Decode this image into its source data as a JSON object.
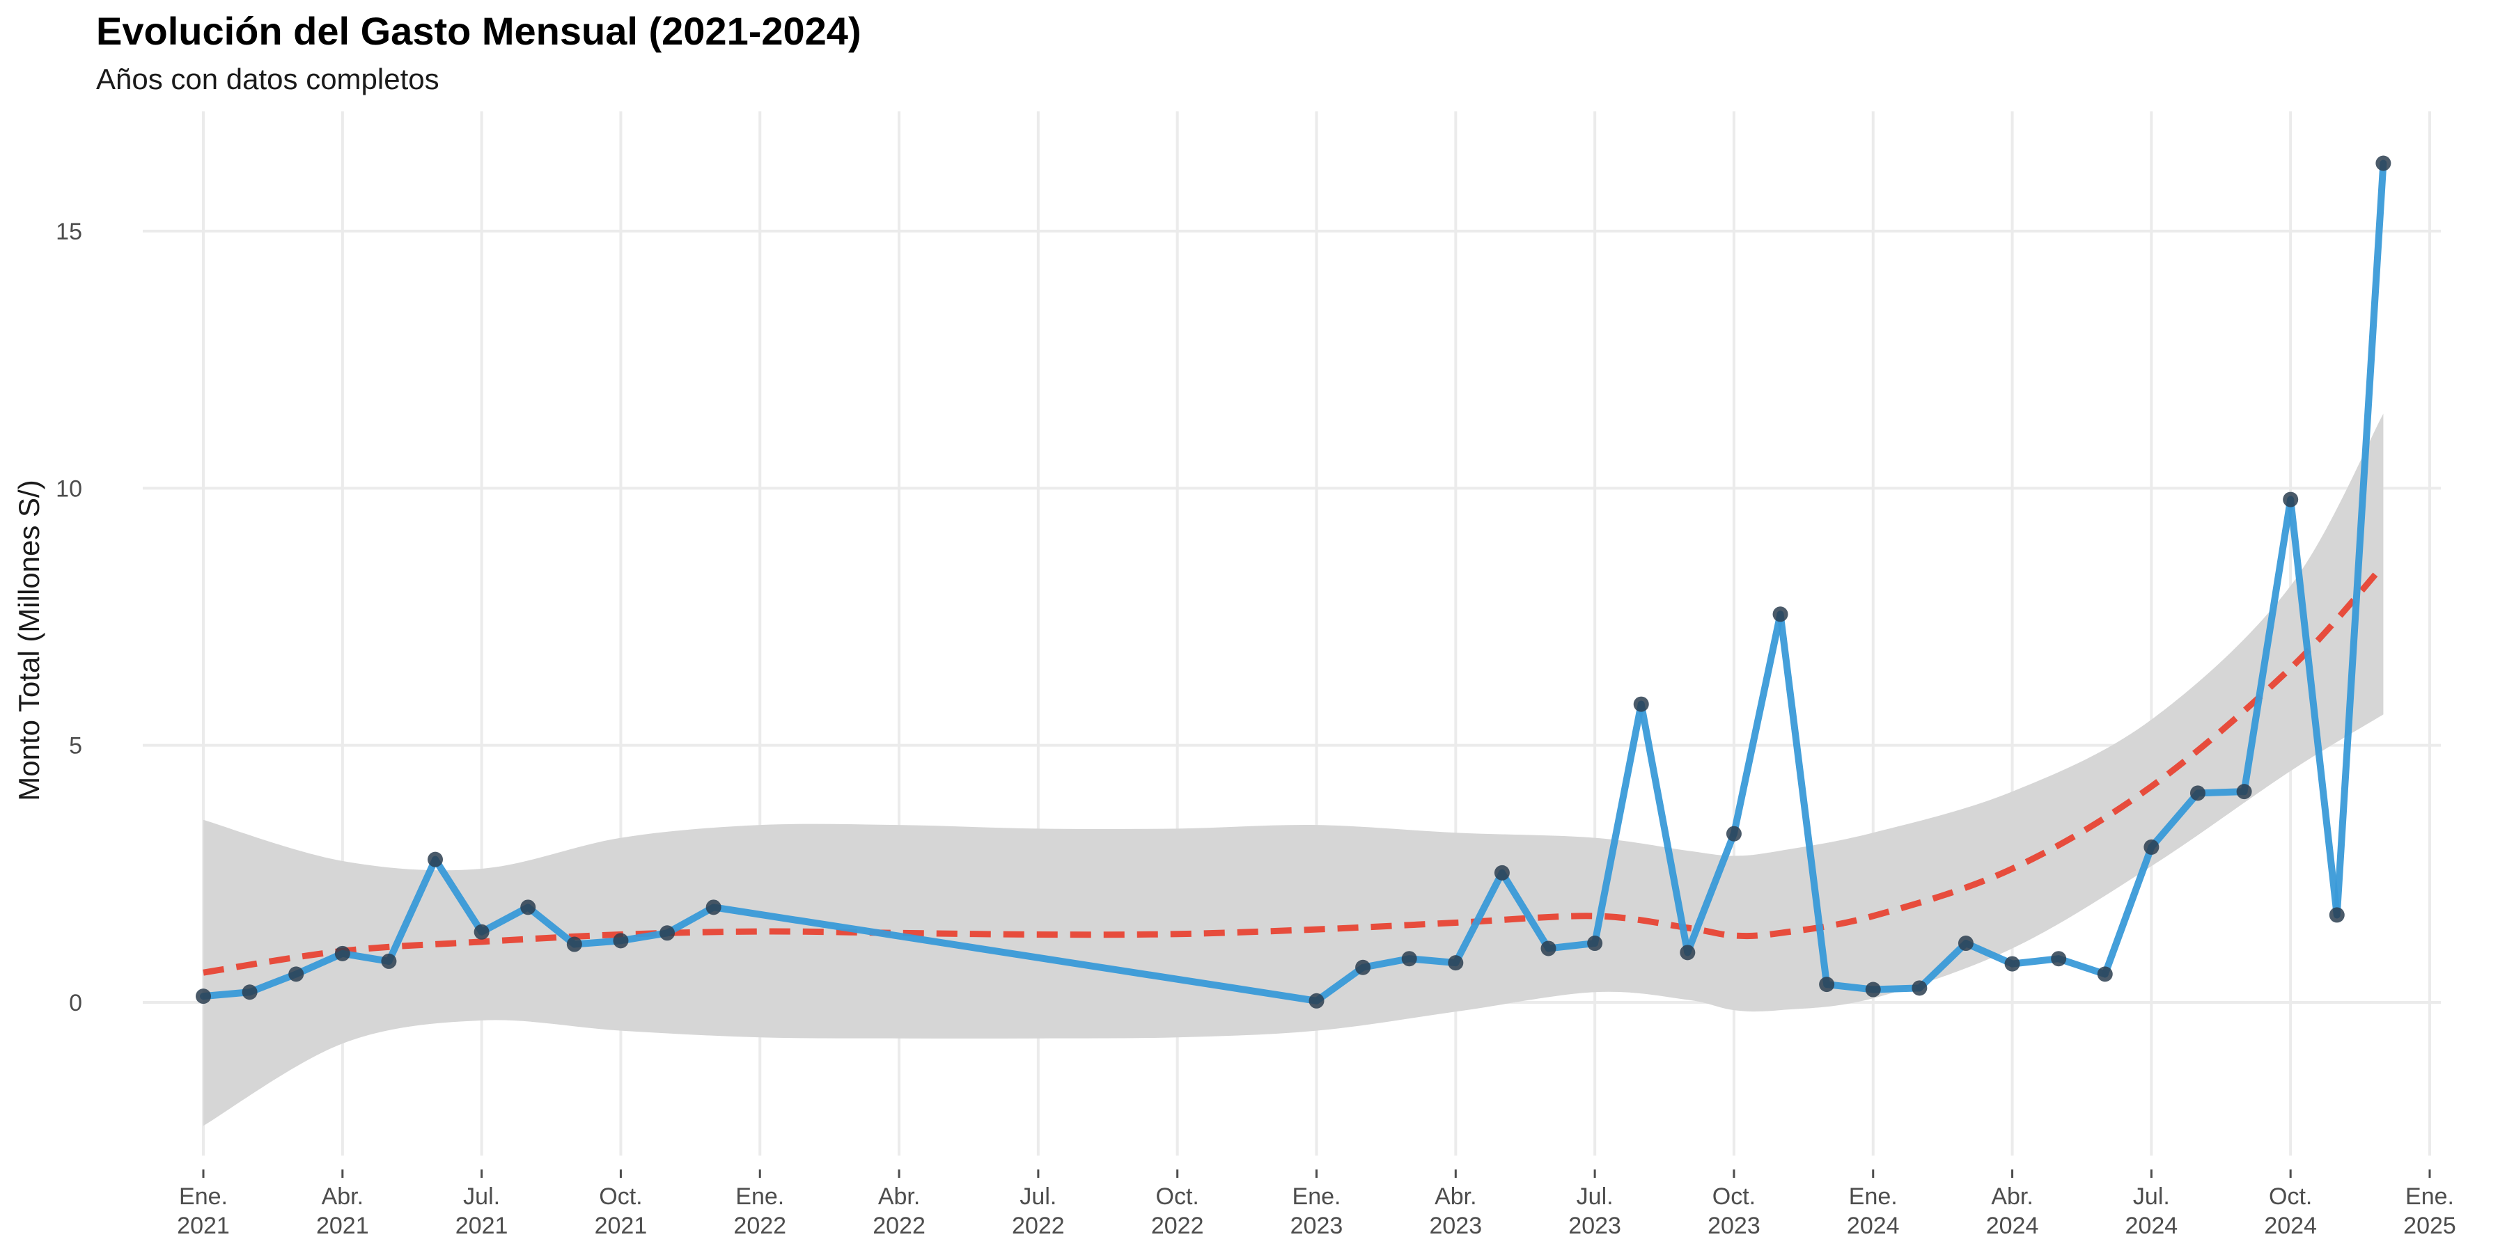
{
  "chart_data": {
    "type": "line",
    "title": "Evolución del Gasto Mensual (2021-2024)",
    "subtitle": "Años con datos completos",
    "xlabel": "",
    "ylabel": "Monto Total (Millones S/)",
    "xlim": [
      "2021-01",
      "2025-01"
    ],
    "ylim": [
      -3.3,
      16.8
    ],
    "y_ticks": [
      0,
      5,
      10,
      15
    ],
    "x_ticks": [
      {
        "date": "2021-01",
        "month": "Ene.",
        "year": "2021"
      },
      {
        "date": "2021-04",
        "month": "Abr.",
        "year": "2021"
      },
      {
        "date": "2021-07",
        "month": "Jul.",
        "year": "2021"
      },
      {
        "date": "2021-10",
        "month": "Oct.",
        "year": "2021"
      },
      {
        "date": "2022-01",
        "month": "Ene.",
        "year": "2022"
      },
      {
        "date": "2022-04",
        "month": "Abr.",
        "year": "2022"
      },
      {
        "date": "2022-07",
        "month": "Jul.",
        "year": "2022"
      },
      {
        "date": "2022-10",
        "month": "Oct.",
        "year": "2022"
      },
      {
        "date": "2023-01",
        "month": "Ene.",
        "year": "2023"
      },
      {
        "date": "2023-04",
        "month": "Abr.",
        "year": "2023"
      },
      {
        "date": "2023-07",
        "month": "Jul.",
        "year": "2023"
      },
      {
        "date": "2023-10",
        "month": "Oct.",
        "year": "2023"
      },
      {
        "date": "2024-01",
        "month": "Ene.",
        "year": "2024"
      },
      {
        "date": "2024-04",
        "month": "Abr.",
        "year": "2024"
      },
      {
        "date": "2024-07",
        "month": "Jul.",
        "year": "2024"
      },
      {
        "date": "2024-10",
        "month": "Oct.",
        "year": "2024"
      },
      {
        "date": "2025-01",
        "month": "Ene.",
        "year": "2025"
      }
    ],
    "grid": true,
    "series": [
      {
        "kind": "line-with-points",
        "color": "#3A9AD9",
        "point_color": "#2C3E50",
        "x": [
          "2021-01",
          "2021-02",
          "2021-03",
          "2021-04",
          "2021-05",
          "2021-06",
          "2021-07",
          "2021-08",
          "2021-09",
          "2021-10",
          "2021-11",
          "2021-12",
          "2023-01",
          "2023-02",
          "2023-03",
          "2023-04",
          "2023-05",
          "2023-06",
          "2023-07",
          "2023-08",
          "2023-09",
          "2023-10",
          "2023-11",
          "2023-12",
          "2024-01",
          "2024-02",
          "2024-03",
          "2024-04",
          "2024-05",
          "2024-06",
          "2024-07",
          "2024-08",
          "2024-09",
          "2024-10",
          "2024-11",
          "2024-12"
        ],
        "y": [
          0.12,
          0.2,
          0.55,
          0.95,
          0.8,
          2.78,
          1.37,
          1.85,
          1.13,
          1.2,
          1.35,
          1.85,
          0.03,
          0.68,
          0.85,
          0.77,
          2.52,
          1.05,
          1.15,
          5.8,
          0.97,
          3.28,
          7.55,
          0.35,
          0.25,
          0.28,
          1.15,
          0.75,
          0.85,
          0.55,
          3.02,
          4.07,
          4.1,
          9.78,
          1.7,
          16.32
        ]
      },
      {
        "kind": "smooth-trend",
        "color": "#E74C3C",
        "line_style": "dashed",
        "x": [
          "2021-01",
          "2021-04",
          "2021-07",
          "2021-10",
          "2022-01",
          "2022-04",
          "2022-07",
          "2022-10",
          "2023-01",
          "2023-04",
          "2023-07",
          "2023-09",
          "2023-10",
          "2023-11",
          "2024-01",
          "2024-04",
          "2024-07",
          "2024-10",
          "2024-12"
        ],
        "y": [
          0.58,
          1.0,
          1.18,
          1.32,
          1.38,
          1.35,
          1.32,
          1.33,
          1.42,
          1.55,
          1.68,
          1.45,
          1.3,
          1.35,
          1.68,
          2.6,
          4.2,
          6.5,
          8.5
        ],
        "band_upper": [
          3.55,
          2.75,
          2.6,
          3.2,
          3.45,
          3.45,
          3.38,
          3.38,
          3.45,
          3.3,
          3.2,
          2.95,
          2.85,
          2.95,
          3.3,
          4.1,
          5.5,
          8.1,
          11.45
        ],
        "band_lower": [
          -2.4,
          -0.8,
          -0.35,
          -0.55,
          -0.68,
          -0.7,
          -0.7,
          -0.68,
          -0.55,
          -0.18,
          0.2,
          0.05,
          -0.15,
          -0.15,
          0.08,
          1.05,
          2.65,
          4.5,
          5.6
        ],
        "band_color": "#D6D6D6"
      }
    ]
  }
}
